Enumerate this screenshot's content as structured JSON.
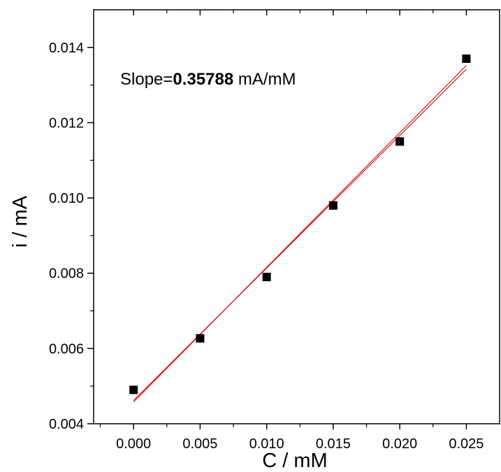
{
  "chart_data": {
    "type": "scatter",
    "xlabel": "C / mM",
    "ylabel": "i / mA",
    "xlim": [
      -0.003,
      0.0275
    ],
    "ylim": [
      0.004,
      0.015
    ],
    "xticks": [
      "0.000",
      "0.005",
      "0.010",
      "0.015",
      "0.020",
      "0.025"
    ],
    "yticks": [
      "0.004",
      "0.006",
      "0.008",
      "0.010",
      "0.012",
      "0.014"
    ],
    "grid": false,
    "annotation": {
      "prefix": "Slope=",
      "value": "0.35788",
      "unit": " mA/mM"
    },
    "series": [
      {
        "marker": "square",
        "color": "#000000",
        "points": [
          {
            "x": 0.0,
            "y": 0.0049
          },
          {
            "x": 0.005,
            "y": 0.00627
          },
          {
            "x": 0.01,
            "y": 0.0079
          },
          {
            "x": 0.015,
            "y": 0.0098
          },
          {
            "x": 0.02,
            "y": 0.0115
          },
          {
            "x": 0.025,
            "y": 0.0137
          }
        ]
      }
    ],
    "fit_lines": [
      {
        "color": "#e00000",
        "x": [
          0.0,
          0.025
        ],
        "y": [
          0.00458,
          0.01352
        ]
      },
      {
        "color": "#e00000",
        "x": [
          0.0,
          0.025
        ],
        "y": [
          0.00462,
          0.01342
        ]
      }
    ]
  }
}
